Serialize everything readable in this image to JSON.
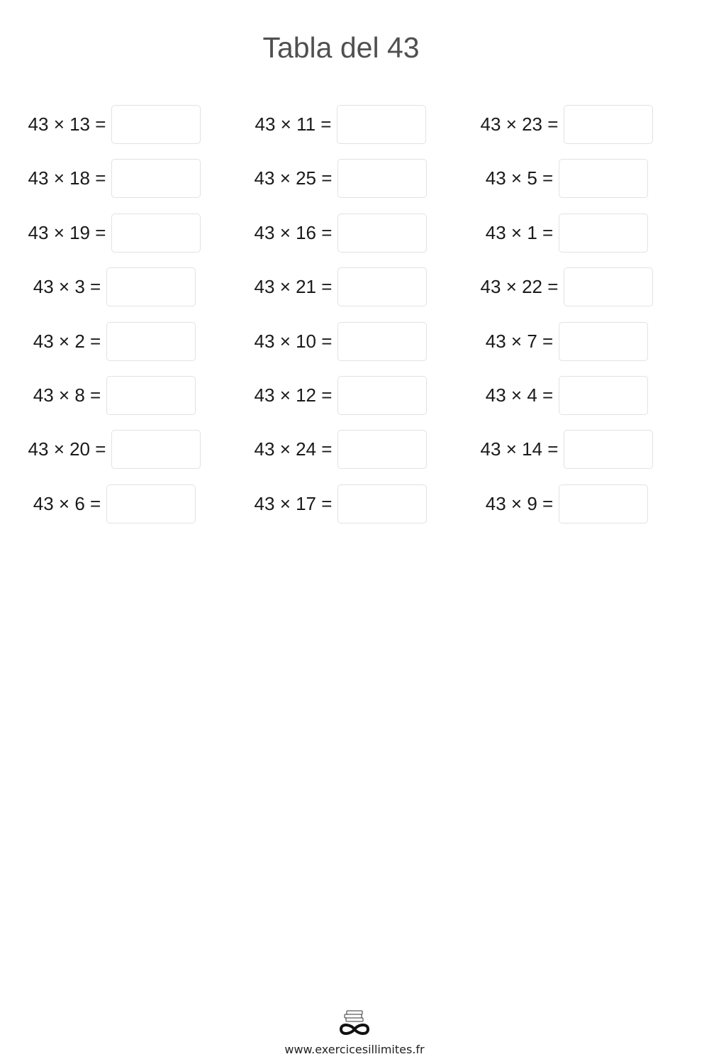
{
  "title": "Tabla del 43",
  "exercises": [
    "43 × 13 =",
    "43 × 11 =",
    "43 × 23 =",
    "43 × 18 =",
    "43 × 25 =",
    "43 × 5 =",
    "43 × 19 =",
    "43 × 16 =",
    "43 × 1 =",
    "43 × 3 =",
    "43 × 21 =",
    "43 × 22 =",
    "43 × 2 =",
    "43 × 10 =",
    "43 × 7 =",
    "43 × 8 =",
    "43 × 12 =",
    "43 × 4 =",
    "43 × 20 =",
    "43 × 24 =",
    "43 × 14 =",
    "43 × 6 =",
    "43 × 17 =",
    "43 × 9 ="
  ],
  "footer": {
    "logo": "books-infinity-logo",
    "url": "www.exercicesillimites.fr"
  }
}
